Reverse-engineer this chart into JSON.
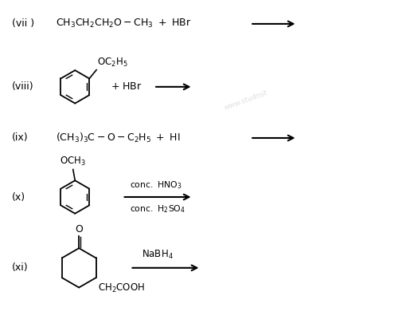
{
  "background_color": "#ffffff",
  "items": [
    {
      "label": "(vii)",
      "eq": "CH₃CH₂CH₂O – CH₃ + HBr",
      "arrow": true
    },
    {
      "label": "(viii)",
      "benzene": true,
      "sub": "OC₂H₅",
      "extra": "+ HBr",
      "arrow": true
    },
    {
      "label": "(ix)",
      "eq": "(CH₃)₃C – O – C₂H₅ + HI",
      "arrow": true
    },
    {
      "label": "(x)",
      "benzene": true,
      "sub": "OCH₃",
      "reagent1": "conc. HNO₃",
      "reagent2": "conc. H₂SO₄",
      "arrow": true
    },
    {
      "label": "(xi)",
      "cyclohexanone": true,
      "sub_bot": "CH₂COOH",
      "reagent1": "NaBH₄",
      "arrow": true
    }
  ]
}
